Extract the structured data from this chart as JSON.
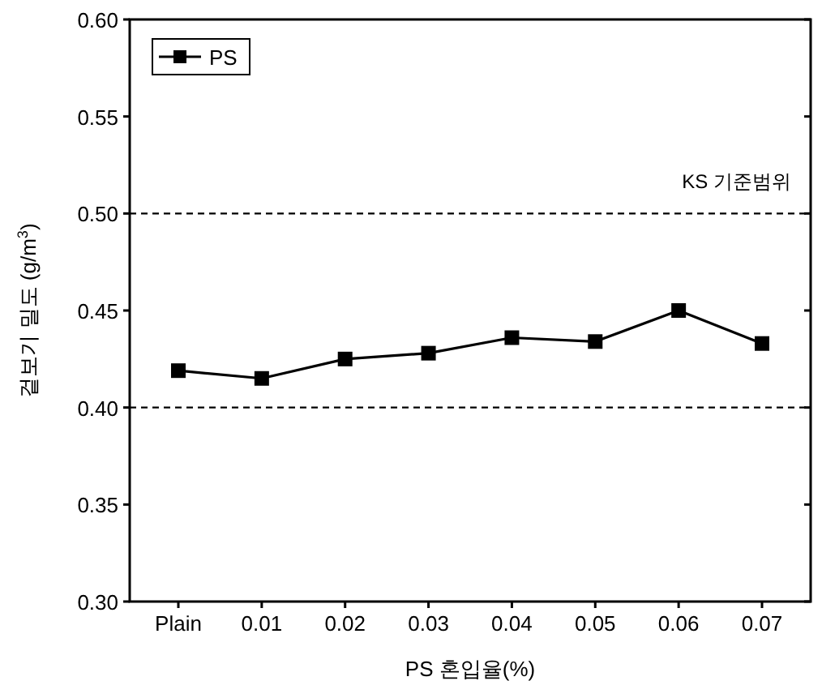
{
  "chart_data": {
    "type": "line",
    "xlabel": "PS 혼입율(%)",
    "ylabel": "겉보기 밀도 (g/m$^{3}$)",
    "categories": [
      "Plain",
      "0.01",
      "0.02",
      "0.03",
      "0.04",
      "0.05",
      "0.06",
      "0.07"
    ],
    "series": [
      {
        "name": "PS",
        "color": "#000000",
        "values": [
          0.419,
          0.415,
          0.425,
          0.428,
          0.436,
          0.434,
          0.45,
          0.433
        ]
      }
    ],
    "ylim": [
      0.3,
      0.6
    ],
    "yticks": [
      {
        "value": 0.3,
        "label": "0.30"
      },
      0.35,
      {
        "value": 0.4,
        "label": "0.40"
      },
      0.45,
      {
        "value": 0.5,
        "label": "0.50"
      },
      0.55,
      {
        "value": 0.6,
        "label": "0.60"
      }
    ],
    "ref_lines": [
      {
        "axis": "y",
        "value": 0.5,
        "line_style": "dashed"
      },
      {
        "axis": "y",
        "value": 0.4,
        "line_style": "dashed"
      }
    ],
    "annotations": [
      "KS 기준범위"
    ],
    "legend": "top left",
    "marker": "square",
    "line_style": "solid",
    "grid": false
  }
}
